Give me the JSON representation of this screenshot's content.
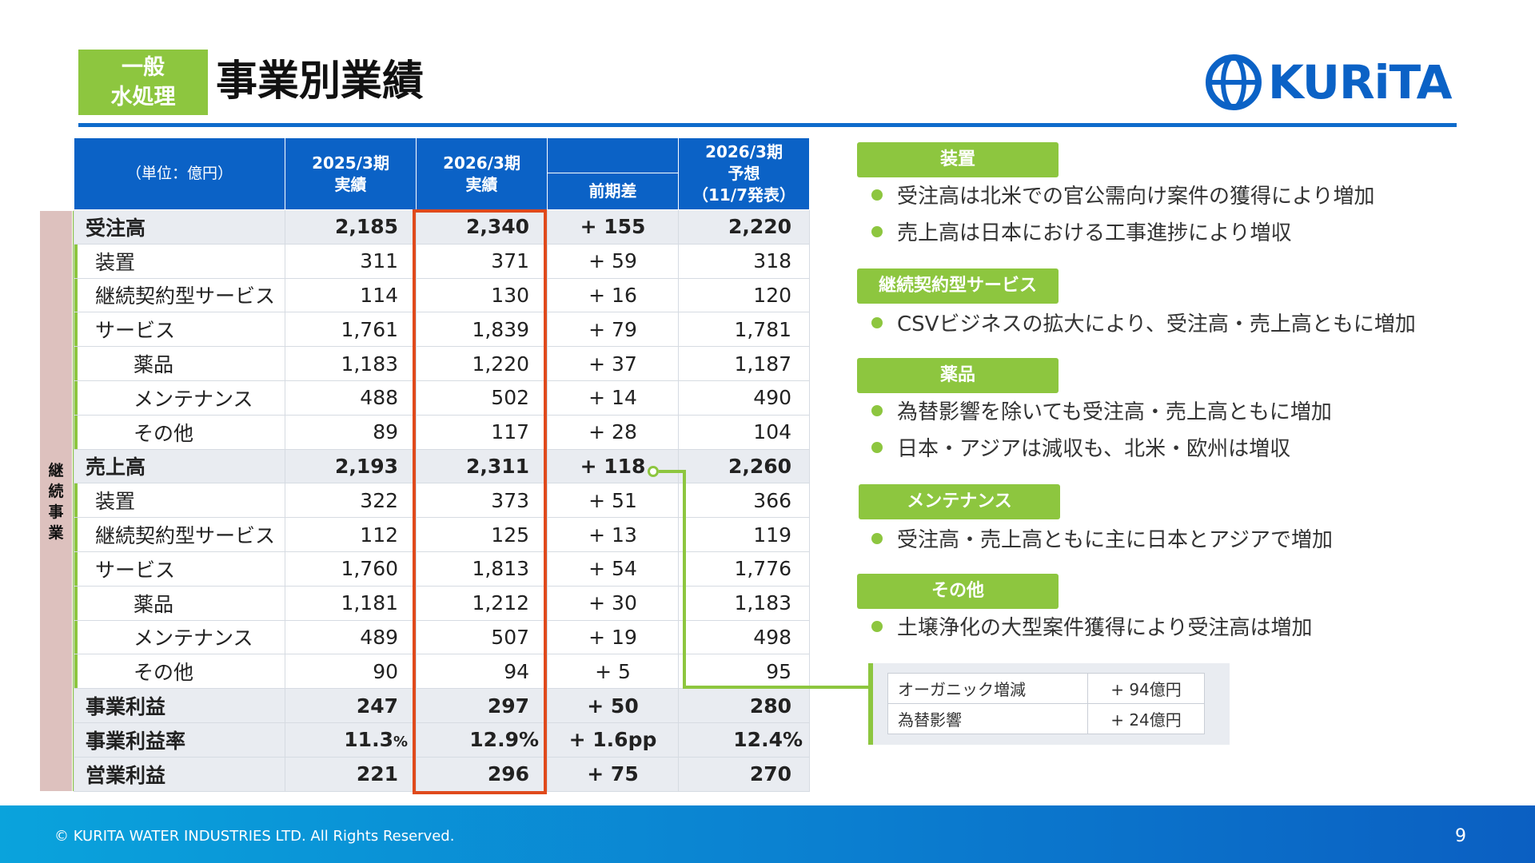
{
  "header": {
    "badge": [
      "一般",
      "水処理"
    ],
    "title": "事業別業績",
    "logo_text": "KURiTA",
    "accent": "#0b62c6",
    "green": "#8dc63f"
  },
  "table": {
    "unit": "（単位：億円）",
    "col_2025": [
      "2025/3期",
      "実績"
    ],
    "col_2026": [
      "2026/3期",
      "実績"
    ],
    "col_diff": "前期差",
    "col_forecast": [
      "2026/3期",
      "予想",
      "（11/7発表）"
    ],
    "rows": [
      {
        "label": "受注高",
        "level": 0,
        "main": true,
        "v2025": "2,185",
        "v2026": "2,340",
        "diff": "+ 155",
        "forecast": "2,220"
      },
      {
        "label": "装置",
        "level": 1,
        "main": false,
        "v2025": "311",
        "v2026": "371",
        "diff": "+ 59",
        "forecast": "318"
      },
      {
        "label": "継続契約型サービス",
        "level": 1,
        "main": false,
        "v2025": "114",
        "v2026": "130",
        "diff": "+ 16",
        "forecast": "120"
      },
      {
        "label": "サービス",
        "level": 1,
        "main": false,
        "v2025": "1,761",
        "v2026": "1,839",
        "diff": "+ 79",
        "forecast": "1,781"
      },
      {
        "label": "薬品",
        "level": 2,
        "main": false,
        "v2025": "1,183",
        "v2026": "1,220",
        "diff": "+ 37",
        "forecast": "1,187"
      },
      {
        "label": "メンテナンス",
        "level": 2,
        "main": false,
        "v2025": "488",
        "v2026": "502",
        "diff": "+ 14",
        "forecast": "490"
      },
      {
        "label": "その他",
        "level": 2,
        "main": false,
        "v2025": "89",
        "v2026": "117",
        "diff": "+ 28",
        "forecast": "104"
      },
      {
        "label": "売上高",
        "level": 0,
        "main": true,
        "v2025": "2,193",
        "v2026": "2,311",
        "diff": "+ 118",
        "forecast": "2,260"
      },
      {
        "label": "装置",
        "level": 1,
        "main": false,
        "v2025": "322",
        "v2026": "373",
        "diff": "+ 51",
        "forecast": "366"
      },
      {
        "label": "継続契約型サービス",
        "level": 1,
        "main": false,
        "v2025": "112",
        "v2026": "125",
        "diff": "+ 13",
        "forecast": "119"
      },
      {
        "label": "サービス",
        "level": 1,
        "main": false,
        "v2025": "1,760",
        "v2026": "1,813",
        "diff": "+ 54",
        "forecast": "1,776"
      },
      {
        "label": "薬品",
        "level": 2,
        "main": false,
        "v2025": "1,181",
        "v2026": "1,212",
        "diff": "+ 30",
        "forecast": "1,183"
      },
      {
        "label": "メンテナンス",
        "level": 2,
        "main": false,
        "v2025": "489",
        "v2026": "507",
        "diff": "+ 19",
        "forecast": "498"
      },
      {
        "label": "その他",
        "level": 2,
        "main": false,
        "v2025": "90",
        "v2026": "94",
        "diff": "+ 5",
        "forecast": "95"
      },
      {
        "label": "事業利益",
        "level": 0,
        "main": true,
        "v2025": "247",
        "v2026": "297",
        "diff": "+ 50",
        "forecast": "280"
      },
      {
        "label": "事業利益率",
        "level": 0,
        "main": true,
        "v2025": "11.3",
        "v2025_unit": "%",
        "v2026": "12.9%",
        "diff": "+ 1.6pp",
        "forecast": "12.4%"
      },
      {
        "label": "営業利益",
        "level": 0,
        "main": true,
        "v2025": "221",
        "v2026": "296",
        "diff": "+ 75",
        "forecast": "270"
      }
    ]
  },
  "side_label": [
    "継",
    "続",
    "事",
    "業"
  ],
  "notes": [
    {
      "title": "装置",
      "bullets": [
        "受注高は北米での官公需向け案件の獲得により増加",
        "売上高は日本における工事進捗により増収"
      ]
    },
    {
      "title": "継続契約型サービス",
      "bullets": [
        "CSVビジネスの拡大により、受注高・売上高ともに増加"
      ]
    },
    {
      "title": "薬品",
      "bullets": [
        "為替影響を除いても受注高・売上高ともに増加",
        "日本・アジアは減収も、北米・欧州は増収"
      ]
    },
    {
      "title": "メンテナンス",
      "bullets": [
        "受注高・売上高ともに主に日本とアジアで増加"
      ]
    },
    {
      "title": "その他",
      "bullets": [
        "土壌浄化の大型案件獲得により受注高は増加"
      ]
    }
  ],
  "inset": [
    {
      "label": "オーガニック増減",
      "value": "+ 94億円"
    },
    {
      "label": "為替影響",
      "value": "+ 24億円"
    }
  ],
  "footer": {
    "copyright": "© KURITA WATER INDUSTRIES LTD. All Rights Reserved.",
    "page": "9"
  }
}
